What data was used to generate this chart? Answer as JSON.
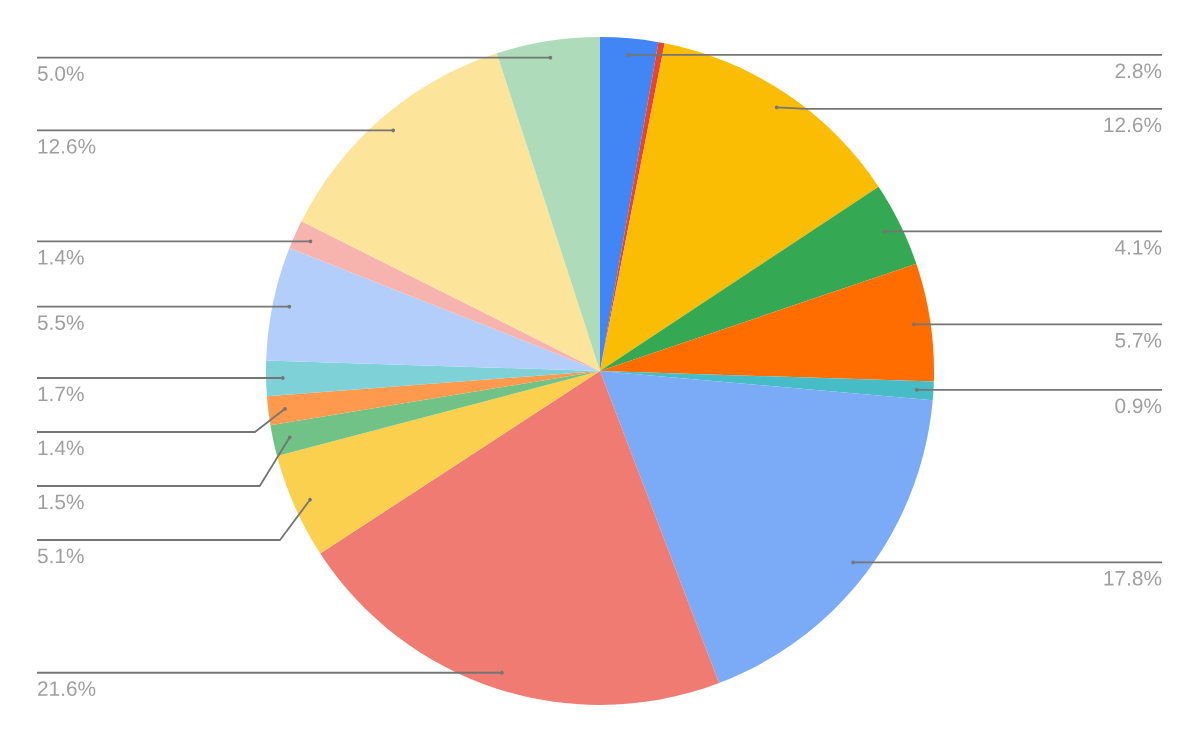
{
  "chart_data": {
    "type": "pie",
    "categories": [
      null,
      null,
      null,
      null,
      null,
      null,
      null,
      null,
      null,
      null,
      null,
      null,
      null,
      null,
      null,
      null
    ],
    "values": [
      2.8,
      0.3,
      12.6,
      4.1,
      5.7,
      0.9,
      17.8,
      21.6,
      5.1,
      1.5,
      1.4,
      1.7,
      5.5,
      1.4,
      12.6,
      5.0
    ],
    "colors": [
      "#4285f4",
      "#ea4335",
      "#fbbc04",
      "#34a853",
      "#ff6d01",
      "#46bdc6",
      "#7baaf7",
      "#f07b72",
      "#fcd04f",
      "#71c287",
      "#ff994d",
      "#7ed1d7",
      "#b3cefb",
      "#f7b4ae",
      "#fde49b",
      "#aedcba"
    ],
    "value_labels": [
      "2.8%",
      null,
      "12.6%",
      "4.1%",
      "5.7%",
      "0.9%",
      "17.8%",
      "21.6%",
      "5.1%",
      "1.5%",
      "1.4%",
      "1.7%",
      "5.5%",
      "1.4%",
      "12.6%",
      "5.0%"
    ],
    "legend": false
  }
}
